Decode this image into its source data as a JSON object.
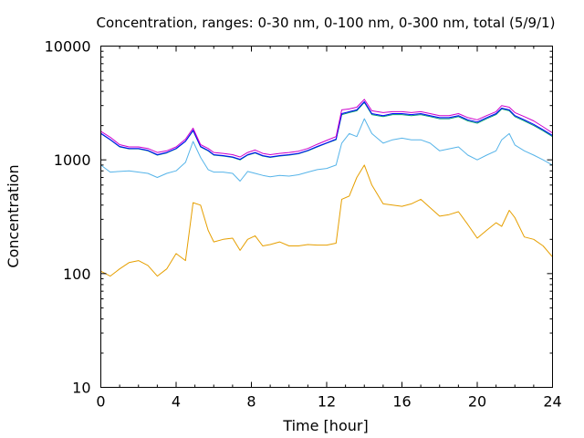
{
  "chart_data": {
    "type": "line",
    "title": "Concentration, ranges: 0-30 nm, 0-100 nm, 0-300 nm, total (5/9/1)",
    "xlabel": "Time [hour]",
    "ylabel": "Concentration",
    "xlim": [
      0,
      24
    ],
    "ylim": [
      10,
      10000
    ],
    "yscale": "log",
    "grid": false,
    "legend": "none",
    "x_ticks": [
      {
        "value": 0,
        "label": "0"
      },
      {
        "value": 4,
        "label": "4"
      },
      {
        "value": 8,
        "label": "8"
      },
      {
        "value": 12,
        "label": "12"
      },
      {
        "value": 16,
        "label": "16"
      },
      {
        "value": 20,
        "label": "20"
      },
      {
        "value": 24,
        "label": "24"
      }
    ],
    "y_ticks": [
      {
        "value": 10,
        "label": "10"
      },
      {
        "value": 100,
        "label": "100"
      },
      {
        "value": 1000,
        "label": "1000"
      },
      {
        "value": 10000,
        "label": "10000"
      }
    ],
    "x": [
      0,
      0.5,
      1,
      1.5,
      2,
      2.5,
      3,
      3.5,
      4,
      4.5,
      4.9,
      5.3,
      5.7,
      6,
      6.5,
      7,
      7.4,
      7.8,
      8.2,
      8.6,
      9,
      9.5,
      10,
      10.5,
      11,
      11.5,
      12,
      12.5,
      12.8,
      13.2,
      13.6,
      14,
      14.4,
      15,
      15.5,
      16,
      16.5,
      17,
      17.5,
      18,
      18.5,
      19,
      19.5,
      20,
      20.5,
      21,
      21.3,
      21.7,
      22,
      22.5,
      23,
      23.5,
      24
    ],
    "series": [
      {
        "color": "#E69F00",
        "values": [
          105,
          95,
          110,
          125,
          130,
          118,
          95,
          110,
          150,
          130,
          420,
          400,
          240,
          190,
          200,
          205,
          160,
          200,
          215,
          175,
          180,
          190,
          175,
          175,
          180,
          178,
          178,
          185,
          450,
          480,
          700,
          900,
          600,
          410,
          400,
          390,
          410,
          450,
          380,
          320,
          330,
          350,
          270,
          205,
          240,
          280,
          260,
          360,
          310,
          210,
          200,
          175,
          140
        ]
      },
      {
        "color": "#56B4E9",
        "values": [
          900,
          780,
          790,
          800,
          780,
          760,
          700,
          760,
          800,
          950,
          1450,
          1050,
          820,
          780,
          780,
          760,
          650,
          790,
          760,
          730,
          710,
          730,
          720,
          740,
          780,
          820,
          840,
          900,
          1400,
          1700,
          1600,
          2300,
          1700,
          1400,
          1500,
          1550,
          1500,
          1500,
          1400,
          1200,
          1250,
          1300,
          1100,
          1000,
          1100,
          1200,
          1500,
          1700,
          1350,
          1200,
          1100,
          1000,
          900
        ]
      },
      {
        "color": "#009E73",
        "values": [
          1700,
          1500,
          1300,
          1250,
          1250,
          1200,
          1100,
          1150,
          1250,
          1450,
          1800,
          1300,
          1200,
          1100,
          1080,
          1050,
          1000,
          1100,
          1150,
          1080,
          1050,
          1080,
          1100,
          1130,
          1200,
          1300,
          1400,
          1500,
          2500,
          2600,
          2700,
          3200,
          2500,
          2400,
          2500,
          2500,
          2450,
          2500,
          2400,
          2300,
          2300,
          2400,
          2200,
          2100,
          2300,
          2500,
          2800,
          2700,
          2400,
          2200,
          2000,
          1800,
          1600
        ]
      },
      {
        "color": "#0000FF",
        "values": [
          1710,
          1510,
          1310,
          1260,
          1260,
          1210,
          1110,
          1160,
          1260,
          1460,
          1820,
          1310,
          1210,
          1110,
          1090,
          1060,
          1010,
          1110,
          1160,
          1090,
          1060,
          1090,
          1110,
          1140,
          1210,
          1310,
          1410,
          1520,
          2550,
          2650,
          2750,
          3250,
          2550,
          2450,
          2550,
          2550,
          2500,
          2550,
          2450,
          2350,
          2350,
          2450,
          2250,
          2150,
          2350,
          2550,
          2850,
          2750,
          2450,
          2250,
          2050,
          1840,
          1640
        ]
      },
      {
        "color": "#CC00CC",
        "values": [
          1780,
          1580,
          1360,
          1300,
          1300,
          1260,
          1160,
          1200,
          1300,
          1520,
          1900,
          1360,
          1260,
          1160,
          1140,
          1110,
          1060,
          1160,
          1220,
          1140,
          1110,
          1140,
          1160,
          1190,
          1260,
          1370,
          1480,
          1600,
          2750,
          2800,
          2900,
          3400,
          2700,
          2600,
          2650,
          2650,
          2600,
          2650,
          2550,
          2450,
          2450,
          2550,
          2350,
          2250,
          2450,
          2650,
          3000,
          2900,
          2600,
          2400,
          2200,
          1950,
          1720
        ]
      }
    ]
  }
}
